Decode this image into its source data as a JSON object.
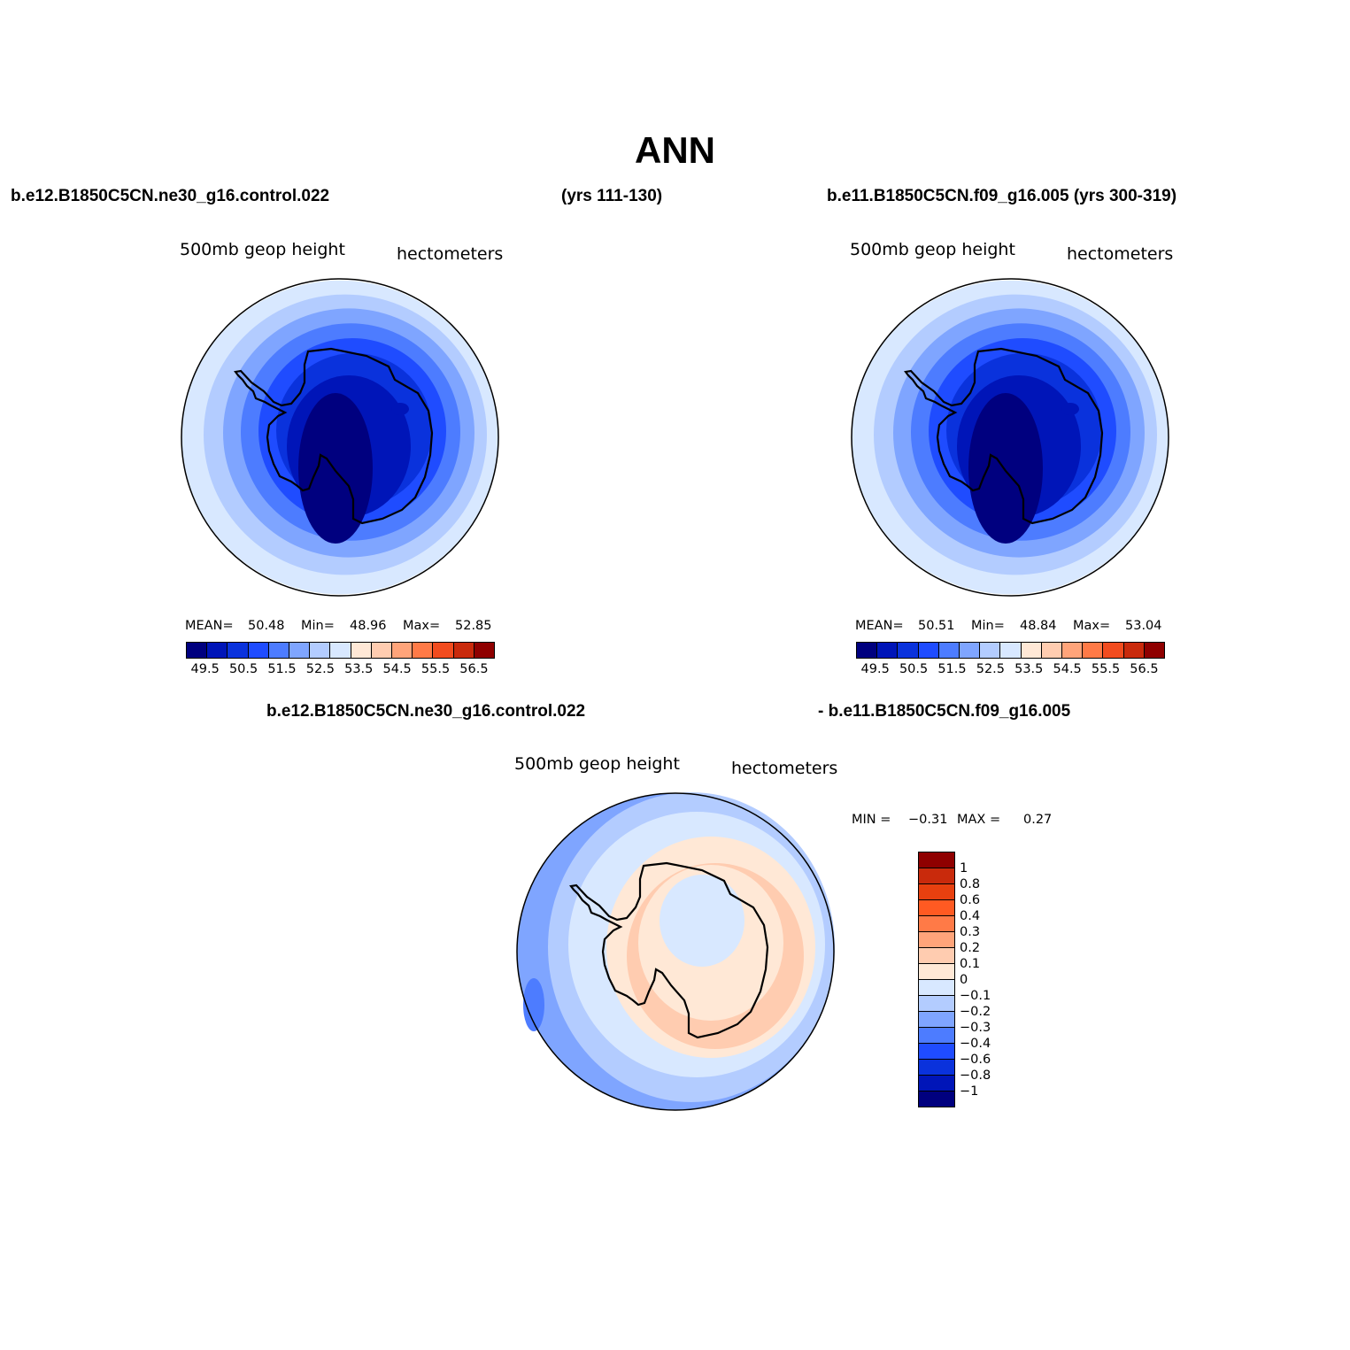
{
  "title": "ANN",
  "header": {
    "left_case": "b.e12.B1850C5CN.ne30_g16.control.022",
    "left_years": "(yrs 111-130)",
    "right_case": "b.e11.B1850C5CN.f09_g16.005 (yrs 300-319)",
    "diff_case_a": "b.e12.B1850C5CN.ne30_g16.control.022",
    "diff_case_b": "- b.e11.B1850C5CN.f09_g16.005"
  },
  "panels": {
    "left": {
      "variable": "500mb  geop  height",
      "units": "hectometers",
      "mean_label": "MEAN=",
      "mean": "50.48",
      "min_label": "Min=",
      "min": "48.96",
      "max_label": "Max=",
      "max": "52.85"
    },
    "right": {
      "variable": "500mb  geop  height",
      "units": "hectometers",
      "mean_label": "MEAN=",
      "mean": "50.51",
      "min_label": "Min=",
      "min": "48.84",
      "max_label": "Max=",
      "max": "53.04"
    },
    "diff": {
      "variable": "500mb  geop  height",
      "units": "hectometers",
      "min_label": "MIN =",
      "min": "−0.31",
      "max_label": "MAX =",
      "max": "0.27"
    }
  },
  "colorbar_main": {
    "colors": [
      "#00007f",
      "#0015b8",
      "#0a32dc",
      "#1f4cff",
      "#4d7cff",
      "#7fa5ff",
      "#b3ccff",
      "#d8e8ff",
      "#ffe8d6",
      "#ffccb0",
      "#ffa47a",
      "#ff7a47",
      "#f24c1f",
      "#c92a0c",
      "#8f0000"
    ],
    "tick_labels": [
      "49.5",
      "50.5",
      "51.5",
      "52.5",
      "53.5",
      "54.5",
      "55.5",
      "56.5"
    ]
  },
  "colorbar_diff": {
    "colors": [
      "#8f0000",
      "#c92a0c",
      "#e8400f",
      "#ff5a22",
      "#ff7a47",
      "#ffa47a",
      "#ffccb0",
      "#ffe8d6",
      "#d8e8ff",
      "#b3ccff",
      "#7fa5ff",
      "#4d7cff",
      "#1f4cff",
      "#0a32dc",
      "#0015b8",
      "#00007f"
    ],
    "labels": [
      "1",
      "0.8",
      "0.6",
      "0.4",
      "0.3",
      "0.2",
      "0.1",
      "0",
      "−0.1",
      "−0.2",
      "−0.3",
      "−0.4",
      "−0.6",
      "−0.8",
      "−1"
    ]
  },
  "map_colors": {
    "left": [
      "#d8e8ff",
      "#b3ccff",
      "#7fa5ff",
      "#4d7cff",
      "#1f4cff",
      "#0a32dc",
      "#0015b8",
      "#00007f"
    ],
    "right": [
      "#d8e8ff",
      "#b3ccff",
      "#7fa5ff",
      "#4d7cff",
      "#1f4cff",
      "#0a32dc",
      "#0015b8",
      "#00007f"
    ],
    "diff": [
      "#b3ccff",
      "#d8e8ff",
      "#ffe8d6",
      "#ffccb0",
      "#d8e8ff"
    ]
  }
}
